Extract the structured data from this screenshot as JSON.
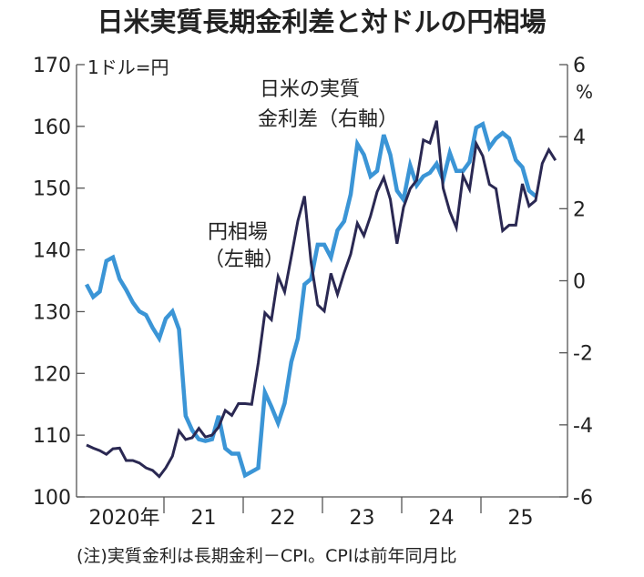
{
  "chart_data": {
    "type": "line",
    "title": "日米実質長期金利差と対ドルの円相場",
    "left_axis_unit": "1ドル=円",
    "right_axis_unit": "%",
    "left_ylim": [
      100,
      170
    ],
    "right_ylim": [
      -6,
      6
    ],
    "left_ticks": [
      100,
      110,
      120,
      130,
      140,
      150,
      160,
      170
    ],
    "right_ticks": [
      -6,
      -4,
      -2,
      0,
      2,
      4,
      6
    ],
    "x_start": "2020-01",
    "x_tick_labels": [
      "2020年",
      "21",
      "22",
      "23",
      "24",
      "25"
    ],
    "grid": false,
    "colors": {
      "yen": "#2a2852",
      "spread": "#3b95d6"
    },
    "series": [
      {
        "name": "円相場（左軸）",
        "label_lines": [
          "円相場",
          "（左軸）"
        ],
        "axis": "left",
        "frequency": "monthly",
        "values": [
          108.4,
          107.9,
          107.5,
          106.9,
          107.8,
          107.9,
          105.9,
          105.9,
          105.5,
          104.7,
          104.3,
          103.3,
          104.7,
          106.6,
          110.7,
          109.3,
          109.6,
          111.1,
          109.7,
          110.0,
          111.3,
          114.0,
          113.2,
          115.1,
          115.1,
          115.0,
          121.7,
          129.8,
          128.7,
          135.7,
          133.2,
          138.9,
          144.7,
          148.7,
          138.0,
          131.1,
          130.1,
          136.2,
          132.8,
          136.3,
          139.3,
          144.3,
          142.3,
          145.5,
          149.4,
          151.7,
          148.2,
          141.0,
          146.9,
          149.9,
          151.3,
          157.8,
          157.3,
          160.9,
          150.0,
          146.2,
          143.6,
          152.0,
          149.8,
          157.2,
          155.2,
          150.6,
          149.9,
          143.1,
          144.0,
          144.0,
          150.7,
          147.1,
          148.0,
          154.0,
          156.2,
          154.5
        ]
      },
      {
        "name": "日米の実質金利差（右軸）",
        "label_lines": [
          "日米の実質",
          "金利差（右軸）"
        ],
        "axis": "right",
        "frequency": "monthly",
        "values": [
          -0.1,
          -0.45,
          -0.3,
          0.55,
          0.65,
          0.05,
          -0.25,
          -0.6,
          -0.85,
          -0.95,
          -1.3,
          -1.6,
          -1.05,
          -0.85,
          -1.35,
          -3.75,
          -4.15,
          -4.4,
          -4.45,
          -4.4,
          -3.75,
          -4.65,
          -4.8,
          -4.8,
          -5.4,
          -5.3,
          -5.2,
          -3.1,
          -3.5,
          -3.95,
          -3.4,
          -2.25,
          -1.6,
          -0.1,
          0.05,
          1.0,
          1.0,
          0.65,
          1.4,
          1.65,
          2.4,
          3.8,
          3.5,
          2.9,
          3.05,
          4.05,
          3.5,
          2.5,
          2.25,
          3.2,
          2.65,
          2.9,
          3.0,
          3.25,
          2.8,
          3.55,
          3.05,
          3.05,
          3.3,
          4.25,
          4.35,
          3.7,
          3.95,
          4.1,
          3.95,
          3.35,
          3.15,
          2.5,
          2.35
        ]
      }
    ],
    "note": "(注)実質金利は長期金利－CPI。CPIは前年同月比"
  }
}
